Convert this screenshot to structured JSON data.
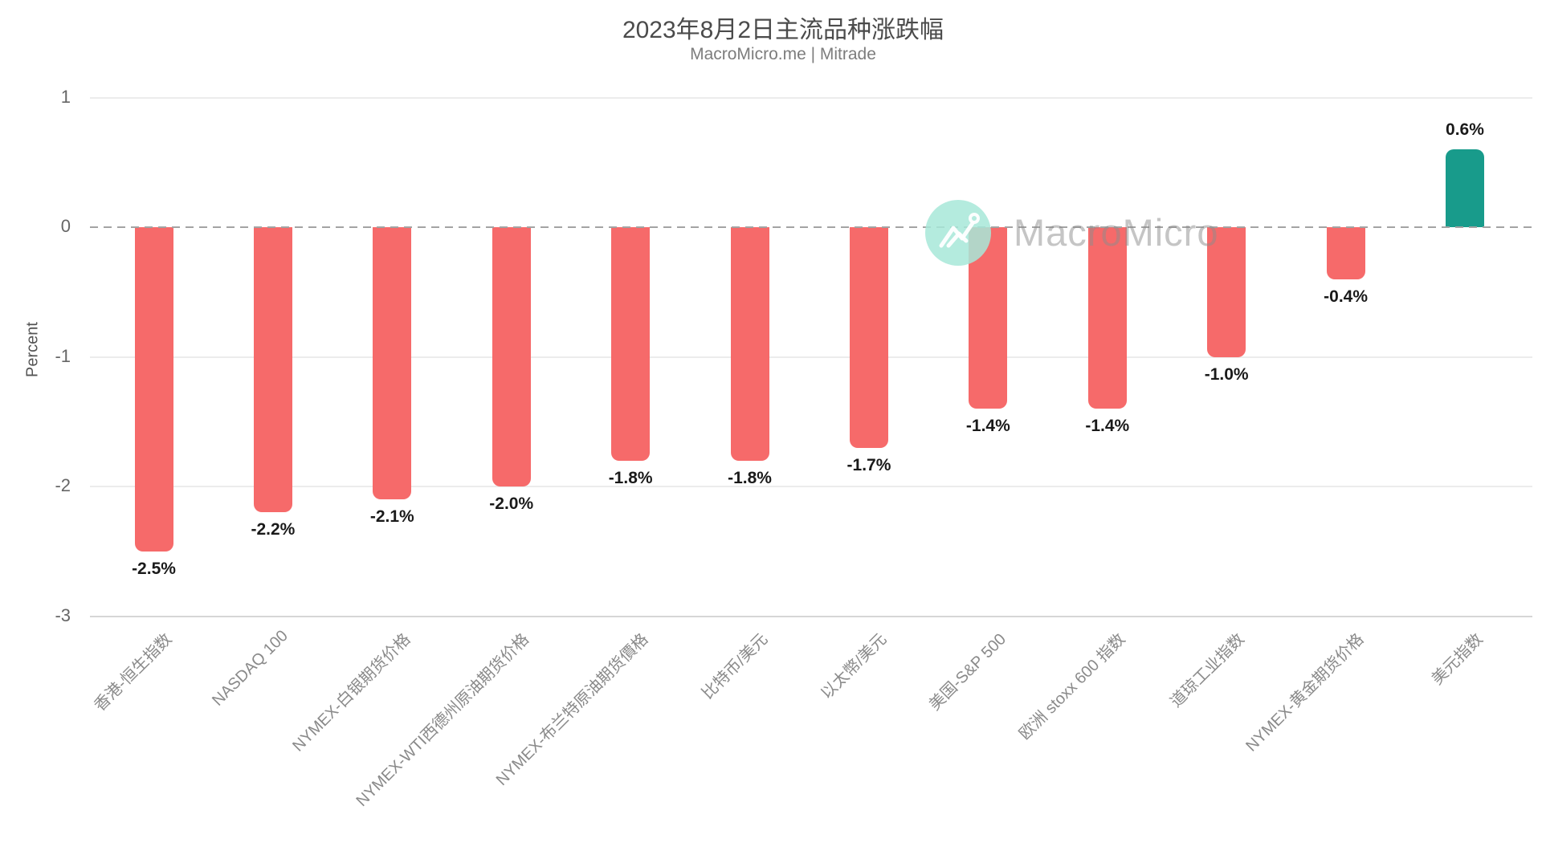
{
  "title": "2023年8月2日主流品种涨跌幅",
  "subtitle": "MacroMicro.me | Mitrade",
  "watermark": {
    "brand_text": "MacroMicro",
    "logo": "macromicro-logo"
  },
  "chart_data": {
    "type": "bar",
    "title": "2023年8月2日主流品种涨跌幅",
    "subtitle": "MacroMicro.me | Mitrade",
    "xlabel": "",
    "ylabel": "Percent",
    "ylim": [
      -3,
      1
    ],
    "yticks": [
      1,
      0,
      -1,
      -2,
      -3
    ],
    "grid": true,
    "zero_line": "dashed",
    "legend": "none",
    "categories": [
      "香港-恒生指数",
      "NASDAQ 100",
      "NYMEX-白银期货价格",
      "NYMEX-WTI西德州原油期货价格",
      "NYMEX-布兰特原油期货價格",
      "比特币/美元",
      "以太幣/美元",
      "美国-S&P 500",
      "欧洲 stoxx 600 指数",
      "道琼工业指数",
      "NYMEX-黄金期货价格",
      "美元指数"
    ],
    "values": [
      -2.5,
      -2.2,
      -2.1,
      -2.0,
      -1.8,
      -1.8,
      -1.7,
      -1.4,
      -1.4,
      -1.0,
      -0.4,
      0.6
    ],
    "value_labels": [
      "-2.5%",
      "-2.2%",
      "-2.1%",
      "-2.0%",
      "-1.8%",
      "-1.8%",
      "-1.7%",
      "-1.4%",
      "-1.4%",
      "-1.0%",
      "-0.4%",
      "0.6%"
    ],
    "colors": {
      "negative": "#f66a6a",
      "positive": "#189b8b"
    }
  }
}
